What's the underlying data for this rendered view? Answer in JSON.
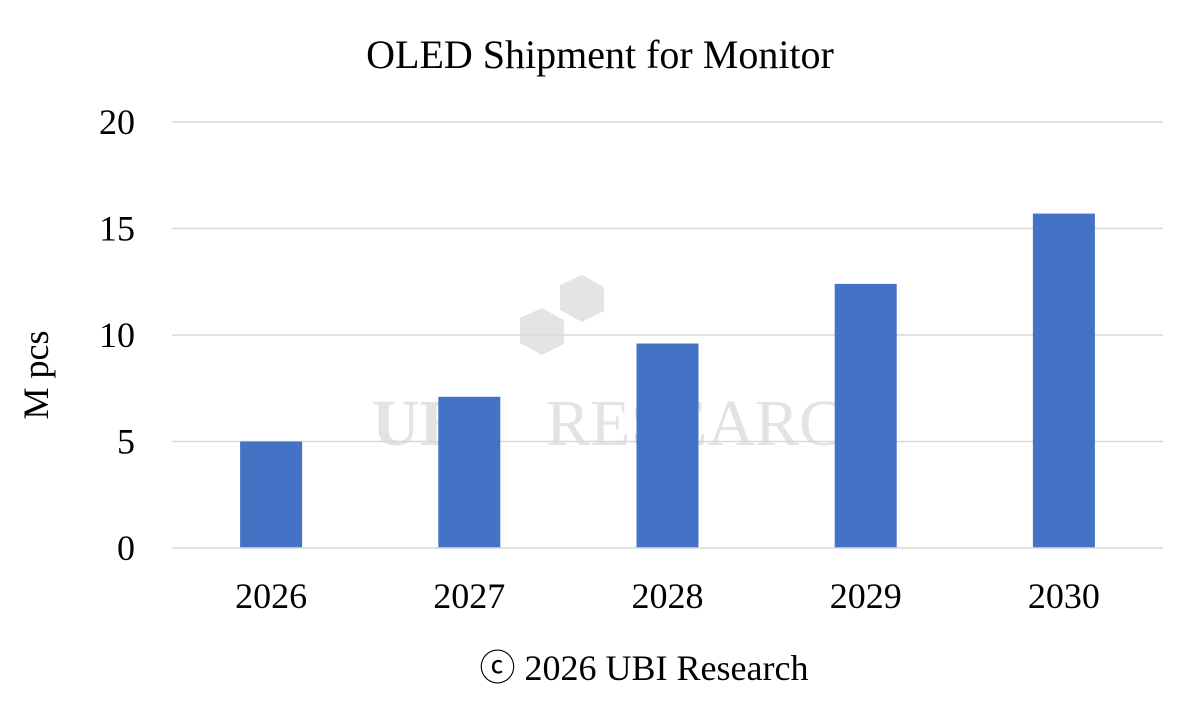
{
  "chart_data": {
    "type": "bar",
    "title": "OLED Shipment for Monitor",
    "xlabel": "",
    "ylabel": "M pcs",
    "categories": [
      "2026",
      "2027",
      "2028",
      "2029",
      "2030"
    ],
    "values": [
      5.0,
      7.1,
      9.6,
      12.4,
      15.7
    ],
    "ylim": [
      0,
      20
    ],
    "yticks": [
      0,
      5,
      10,
      15,
      20
    ],
    "ytick_labels": [
      "0",
      "5",
      "10",
      "15",
      "20"
    ],
    "grid": true,
    "legend": "none",
    "bar_color": "#4472c4"
  },
  "footer": {
    "copyright": "ⓒ 2026 UBI Research"
  },
  "watermark": {
    "text": "RESEARCH",
    "logo": "UBI"
  }
}
